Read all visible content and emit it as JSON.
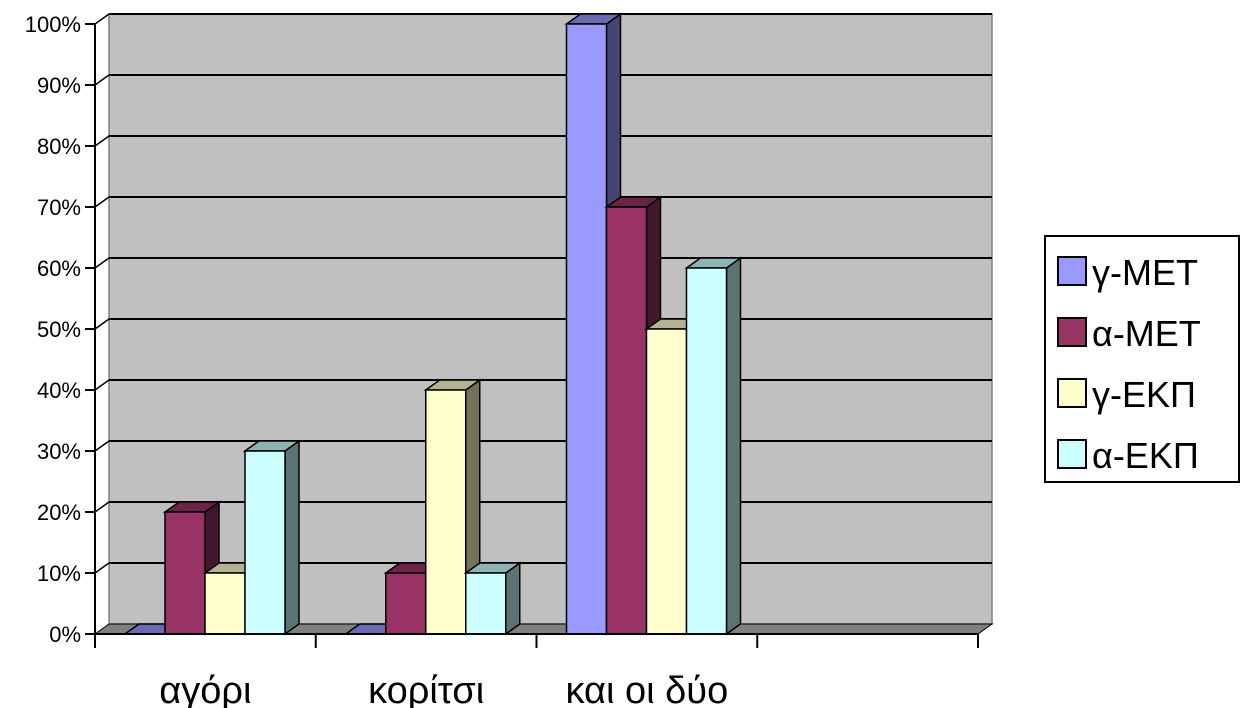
{
  "chart_data": {
    "type": "bar",
    "style": "3d-clustered-column",
    "categories": [
      "αγόρι",
      "κορίτσι",
      "και οι δύο",
      ""
    ],
    "series": [
      {
        "name": "γ-ΜΕΤ",
        "values": [
          0,
          0,
          100,
          null
        ],
        "color": "#9999ff"
      },
      {
        "name": "α-ΜΕΤ",
        "values": [
          20,
          10,
          70,
          null
        ],
        "color": "#993366"
      },
      {
        "name": "γ-ΕΚΠ",
        "values": [
          10,
          40,
          50,
          null
        ],
        "color": "#ffffcc"
      },
      {
        "name": "α-ΕΚΠ",
        "values": [
          30,
          10,
          60,
          null
        ],
        "color": "#ccffff"
      }
    ],
    "y_ticks": [
      "0%",
      "10%",
      "20%",
      "30%",
      "40%",
      "50%",
      "60%",
      "70%",
      "80%",
      "90%",
      "100%"
    ],
    "ylim": [
      0,
      100
    ],
    "y_unit": "%",
    "grid": true,
    "wall_color": "#c0c0c0",
    "legend_position": "right"
  }
}
